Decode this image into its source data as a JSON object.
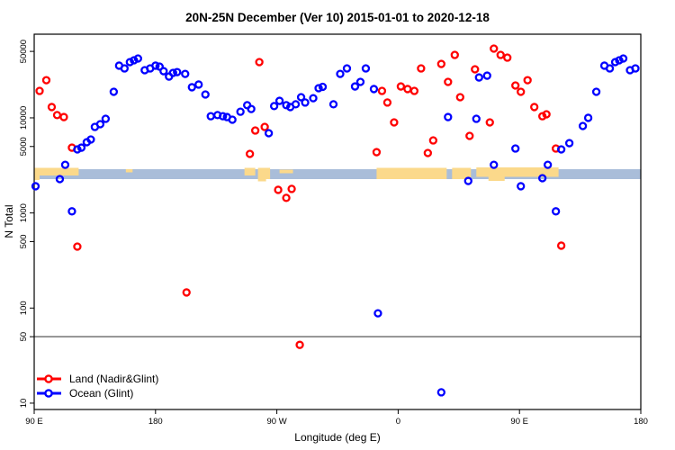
{
  "chart_data": {
    "type": "scatter",
    "title": "20N-25N December (Ver 10)   2015-01-01 to 2020-12-18",
    "xlabel": "Longitude (deg E)",
    "ylabel": "N Total",
    "x_axis": {
      "span_deg": 450,
      "tick_deg": [
        0,
        90,
        180,
        270,
        360,
        450
      ],
      "tick_labels": [
        "90 E",
        "180",
        "90 W",
        "0",
        "90 E",
        "180"
      ],
      "note": "axis starts at 90E and runs eastward 450 degrees (90E..180..90W..0..90E..180)"
    },
    "y_axis": {
      "scale": "log",
      "tick_values": [
        50000,
        10000,
        5000,
        1000,
        500,
        100,
        50,
        10
      ],
      "tick_labels": [
        "50000",
        "10000",
        "5000",
        "1000",
        "500",
        "100",
        "50",
        "10"
      ],
      "ylim": [
        9,
        76000
      ]
    },
    "grid": "off",
    "legend_position": "bottom-left",
    "reference_line_y": 50,
    "colors": {
      "land": "#ff0000",
      "ocean": "#0000ff",
      "strip_ocean": "#a9bdd9",
      "strip_land": "#fbd98b",
      "reference_line": "#7f7f7f",
      "axis": "#000000"
    },
    "series": [
      {
        "name": "Land (Nadir&Glint)",
        "color": "#ff0000",
        "points": [
          [
            4,
            19200
          ],
          [
            9,
            24900
          ],
          [
            13,
            13000
          ],
          [
            17,
            10700
          ],
          [
            22,
            10200
          ],
          [
            28,
            4860
          ],
          [
            32,
            443
          ],
          [
            113,
            146
          ],
          [
            160,
            4180
          ],
          [
            164,
            7360
          ],
          [
            167,
            38600
          ],
          [
            171,
            8030
          ],
          [
            181,
            1750
          ],
          [
            187,
            1440
          ],
          [
            191,
            1790
          ],
          [
            197,
            41
          ],
          [
            254,
            4360
          ],
          [
            258,
            19200
          ],
          [
            262,
            14500
          ],
          [
            267,
            8960
          ],
          [
            272,
            21400
          ],
          [
            277,
            20100
          ],
          [
            282,
            19200
          ],
          [
            287,
            33100
          ],
          [
            292,
            4270
          ],
          [
            296,
            5790
          ],
          [
            302,
            36900
          ],
          [
            307,
            23900
          ],
          [
            312,
            45900
          ],
          [
            316,
            16500
          ],
          [
            323,
            6460
          ],
          [
            327,
            32400
          ],
          [
            338,
            8960
          ],
          [
            341,
            53500
          ],
          [
            346,
            45900
          ],
          [
            351,
            43000
          ],
          [
            357,
            21900
          ],
          [
            361,
            18800
          ],
          [
            366,
            24900
          ],
          [
            371,
            13000
          ],
          [
            377,
            10400
          ],
          [
            380,
            10900
          ],
          [
            387,
            4760
          ],
          [
            391,
            453
          ]
        ]
      },
      {
        "name": "Ocean (Glint)",
        "color": "#0000ff",
        "points": [
          [
            1,
            1910
          ],
          [
            19,
            2270
          ],
          [
            23,
            3210
          ],
          [
            28,
            1040
          ],
          [
            32,
            4660
          ],
          [
            35,
            4860
          ],
          [
            39,
            5550
          ],
          [
            42,
            5920
          ],
          [
            45,
            8030
          ],
          [
            49,
            8580
          ],
          [
            53,
            9770
          ],
          [
            59,
            18800
          ],
          [
            63,
            35400
          ],
          [
            67,
            33100
          ],
          [
            71,
            38600
          ],
          [
            74,
            40300
          ],
          [
            77,
            42100
          ],
          [
            82,
            31700
          ],
          [
            86,
            33100
          ],
          [
            90,
            35400
          ],
          [
            93,
            34600
          ],
          [
            96,
            31000
          ],
          [
            100,
            27200
          ],
          [
            103,
            29700
          ],
          [
            106,
            30300
          ],
          [
            112,
            29000
          ],
          [
            117,
            21000
          ],
          [
            122,
            22400
          ],
          [
            127,
            17600
          ],
          [
            131,
            10400
          ],
          [
            136,
            10700
          ],
          [
            140,
            10400
          ],
          [
            143,
            10200
          ],
          [
            147,
            9570
          ],
          [
            153,
            11600
          ],
          [
            158,
            13600
          ],
          [
            161,
            12400
          ],
          [
            174,
            6900
          ],
          [
            178,
            13300
          ],
          [
            182,
            15100
          ],
          [
            187,
            13600
          ],
          [
            190,
            13000
          ],
          [
            194,
            13900
          ],
          [
            198,
            16500
          ],
          [
            201,
            14500
          ],
          [
            207,
            16100
          ],
          [
            211,
            20500
          ],
          [
            214,
            21200
          ],
          [
            222,
            13900
          ],
          [
            227,
            29000
          ],
          [
            232,
            33100
          ],
          [
            238,
            21400
          ],
          [
            242,
            23900
          ],
          [
            246,
            33100
          ],
          [
            252,
            20100
          ],
          [
            255,
            88
          ],
          [
            302,
            13
          ],
          [
            307,
            10200
          ],
          [
            322,
            2170
          ],
          [
            328,
            9770
          ],
          [
            330,
            26600
          ],
          [
            336,
            27800
          ],
          [
            341,
            3210
          ],
          [
            357,
            4760
          ],
          [
            361,
            1910
          ],
          [
            377,
            2320
          ],
          [
            381,
            3210
          ],
          [
            387,
            1040
          ],
          [
            391,
            4660
          ],
          [
            397,
            5420
          ],
          [
            407,
            8210
          ],
          [
            411,
            10000
          ],
          [
            417,
            18800
          ],
          [
            423,
            35400
          ],
          [
            427,
            33100
          ],
          [
            431,
            38600
          ],
          [
            434,
            40300
          ],
          [
            437,
            42100
          ],
          [
            442,
            31700
          ],
          [
            446,
            33100
          ]
        ]
      }
    ],
    "map_strip": {
      "description": "thin world-map band (20N-25N) drawn across the plot near N=2500",
      "ocean_color": "#a9bdd9",
      "land_color": "#fbd98b",
      "segments": [
        {
          "d0": 0,
          "d1": 33,
          "band": "top"
        },
        {
          "d0": 0,
          "d1": 4,
          "band": "corner"
        },
        {
          "d0": 68,
          "d1": 73,
          "band": "speck"
        },
        {
          "d0": 156,
          "d1": 164,
          "band": "top"
        },
        {
          "d0": 166,
          "d1": 175,
          "band": "full"
        },
        {
          "d0": 182,
          "d1": 192,
          "band": "thin"
        },
        {
          "d0": 254,
          "d1": 306,
          "band": "full"
        },
        {
          "d0": 310,
          "d1": 324,
          "band": "full"
        },
        {
          "d0": 328,
          "d1": 389,
          "band": "top-deep"
        }
      ],
      "descenders": [
        {
          "d0": 166,
          "d1": 172,
          "y0": 198,
          "y1": 201.5
        },
        {
          "d0": 337,
          "d1": 349,
          "y0": 196.5,
          "y1": 201
        }
      ]
    }
  }
}
